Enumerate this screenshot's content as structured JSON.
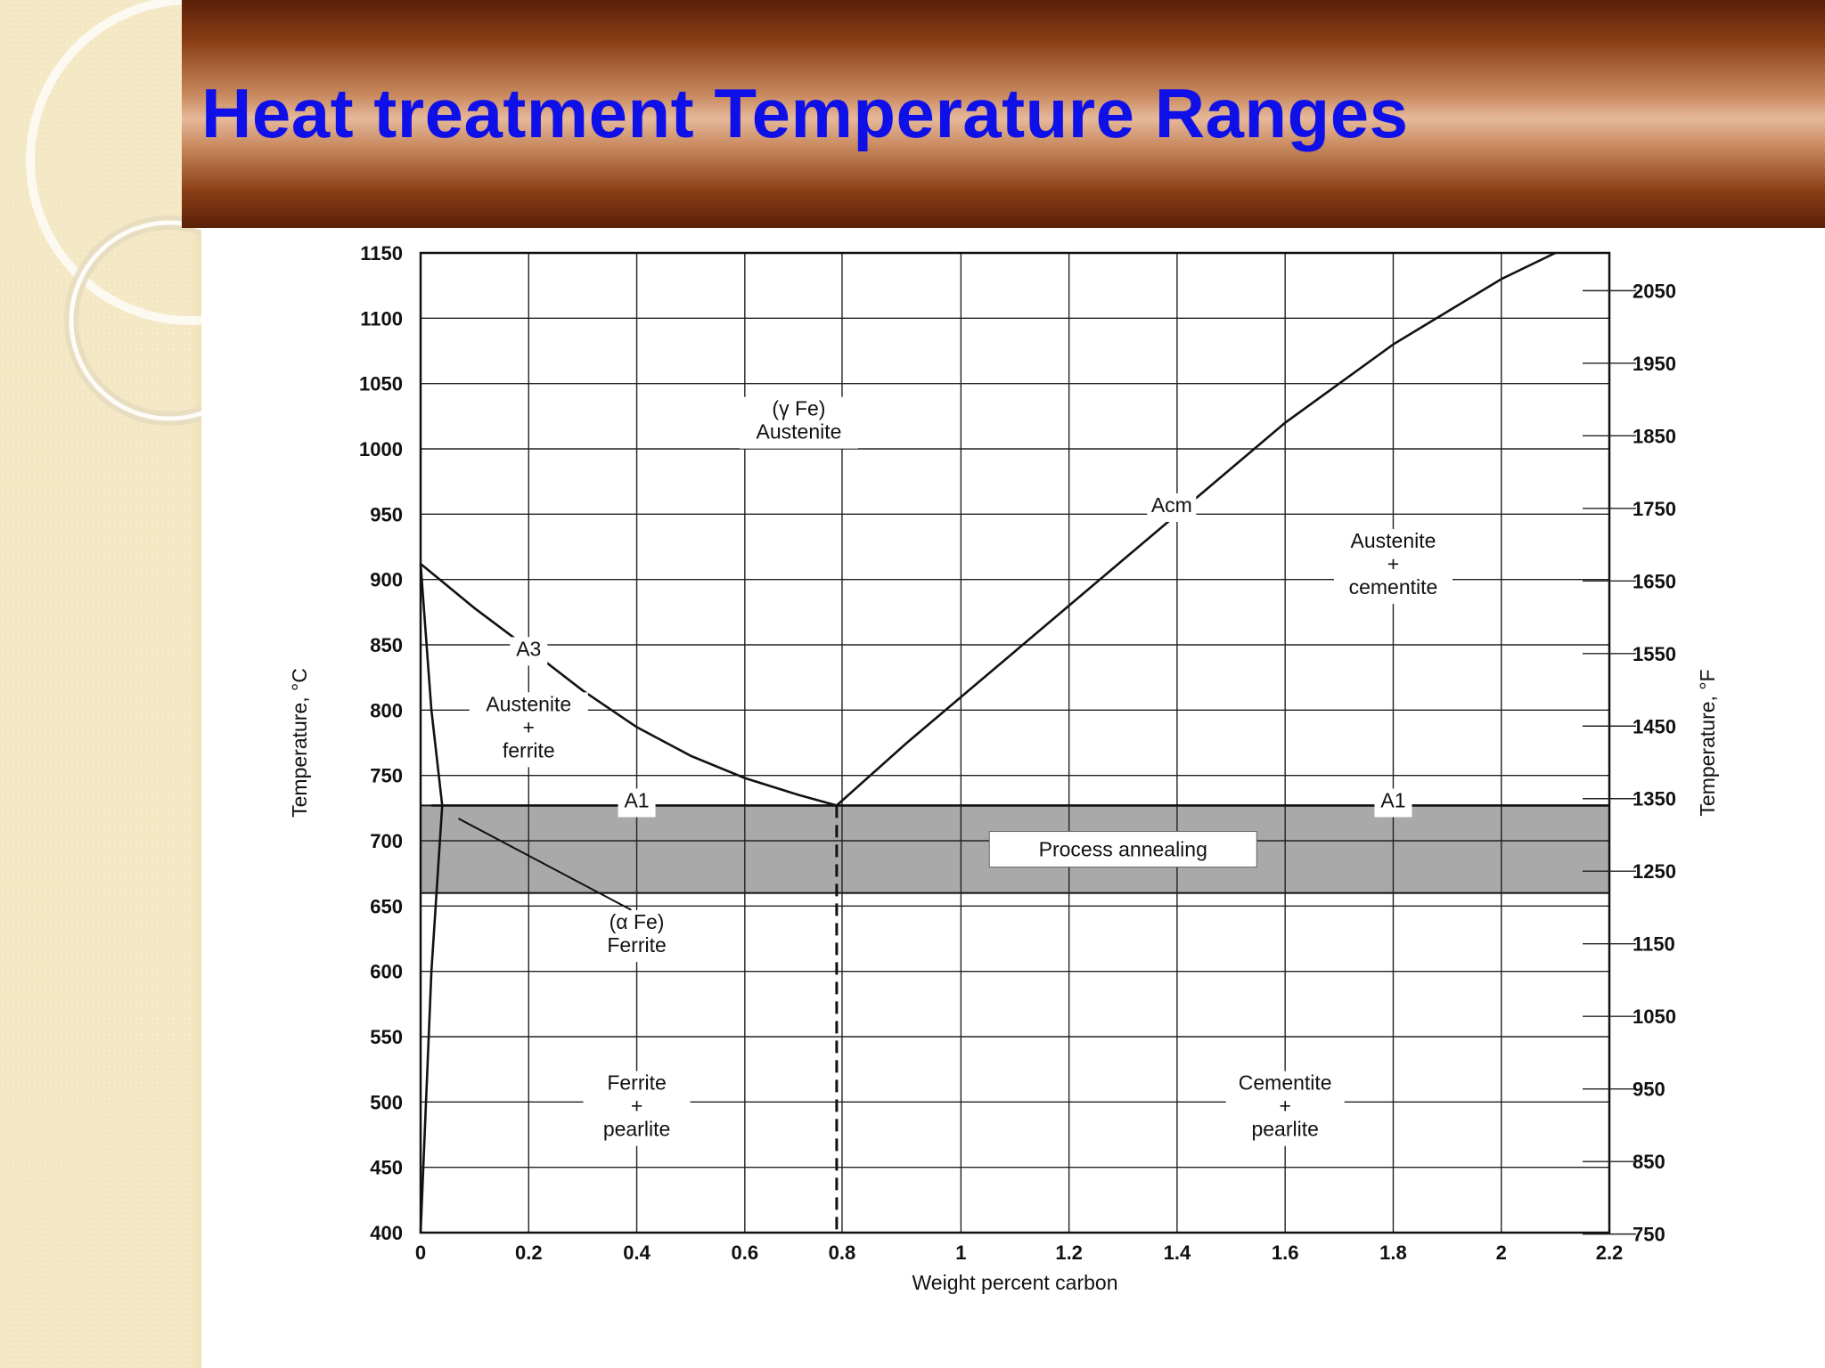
{
  "slide": {
    "title": "Heat treatment Temperature Ranges"
  },
  "colors": {
    "title": "#0f10e8",
    "banner_dark": "#5a2008",
    "banner_light": "#e6b99b",
    "strip": "#f4e7c3",
    "band": "#a9a9a9"
  },
  "chart_data": {
    "type": "line",
    "title": "",
    "xlabel": "Weight percent carbon",
    "ylabel": "Temperature, °C",
    "y2label": "Temperature, °F",
    "xlim": [
      0,
      2.2
    ],
    "ylim": [
      400,
      1150
    ],
    "grid": true,
    "x_ticks": [
      "0",
      "0.2",
      "0.4",
      "0.6",
      "0.8",
      "1",
      "1.2",
      "1.4",
      "1.6",
      "1.8",
      "2",
      "2.2"
    ],
    "x_tick_values": [
      0,
      0.2,
      0.4,
      0.6,
      0.78,
      1,
      1.2,
      1.4,
      1.6,
      1.8,
      2,
      2.2
    ],
    "y_ticks": [
      400,
      450,
      500,
      550,
      600,
      650,
      700,
      750,
      800,
      850,
      900,
      950,
      1000,
      1050,
      1100,
      1150
    ],
    "y2_ticks": [
      750,
      850,
      950,
      1050,
      1150,
      1250,
      1350,
      1450,
      1550,
      1650,
      1750,
      1850,
      1950,
      2050
    ],
    "series": [
      {
        "name": "A3",
        "x": [
          0,
          0.1,
          0.2,
          0.3,
          0.4,
          0.5,
          0.6,
          0.7,
          0.77
        ],
        "y": [
          912,
          878,
          847,
          815,
          787,
          765,
          748,
          735,
          727
        ]
      },
      {
        "name": "Acm",
        "x": [
          0.77,
          0.9,
          1.0,
          1.1,
          1.2,
          1.3,
          1.4,
          1.5,
          1.6,
          1.7,
          1.8,
          1.9,
          2.0,
          2.1
        ],
        "y": [
          727,
          775,
          810,
          845,
          880,
          915,
          950,
          985,
          1020,
          1050,
          1080,
          1105,
          1130,
          1150
        ]
      },
      {
        "name": "A1",
        "x": [
          0.02,
          2.2
        ],
        "y": [
          727,
          727
        ]
      },
      {
        "name": "",
        "x": [
          0,
          0.02,
          0.04,
          0.02,
          0
        ],
        "y": [
          912,
          800,
          727,
          600,
          400
        ]
      }
    ],
    "eutectoid_x": 0.77,
    "band": {
      "label": "Process annealing",
      "y_from": 660,
      "y_to": 727
    },
    "labels": [
      {
        "lines": [
          "(γ Fe)",
          "Austenite"
        ],
        "x": 0.7,
        "y": 1020
      },
      {
        "lines": [
          "Acm"
        ],
        "x": 1.39,
        "y": 955,
        "kind": "curve"
      },
      {
        "lines": [
          "Austenite",
          "+",
          "cementite"
        ],
        "x": 1.8,
        "y": 910
      },
      {
        "lines": [
          "A3"
        ],
        "x": 0.2,
        "y": 845,
        "kind": "curve"
      },
      {
        "lines": [
          "Austenite",
          "+",
          "ferrite"
        ],
        "x": 0.2,
        "y": 785
      },
      {
        "lines": [
          "A1"
        ],
        "x": 0.4,
        "y": 729,
        "kind": "curve"
      },
      {
        "lines": [
          "A1"
        ],
        "x": 1.8,
        "y": 729,
        "kind": "curve"
      },
      {
        "lines": [
          "(α Fe)",
          "Ferrite"
        ],
        "x": 0.4,
        "y": 627
      },
      {
        "lines": [
          "Ferrite",
          "+",
          "pearlite"
        ],
        "x": 0.4,
        "y": 495
      },
      {
        "lines": [
          "Cementite",
          "+",
          "pearlite"
        ],
        "x": 1.6,
        "y": 495
      }
    ]
  }
}
